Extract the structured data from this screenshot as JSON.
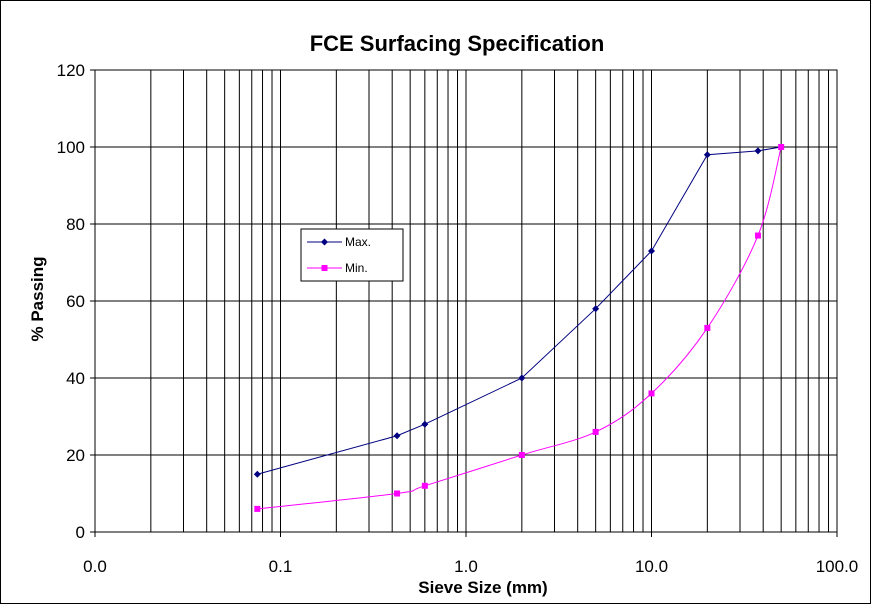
{
  "chart_data": {
    "type": "line",
    "title": "FCE Surfacing Specification",
    "xlabel": "Sieve Size (mm)",
    "ylabel": "% Passing",
    "x_scale": "log",
    "xlim": [
      0.01,
      100
    ],
    "ylim": [
      0,
      120
    ],
    "x_ticks": [
      "0.0",
      "0.1",
      "1.0",
      "10.0",
      "100.0"
    ],
    "y_ticks": [
      "0",
      "20",
      "40",
      "60",
      "80",
      "100",
      "120"
    ],
    "grid": true,
    "legend_position": "upper-left",
    "series": [
      {
        "name": "Max.",
        "color": "#000080",
        "marker": "diamond",
        "x": [
          0.075,
          0.425,
          0.6,
          2,
          5,
          10,
          20,
          37.5,
          50
        ],
        "y": [
          15,
          25,
          28,
          40,
          58,
          73,
          98,
          99,
          100
        ]
      },
      {
        "name": "Min.",
        "color": "#FF00FF",
        "marker": "square",
        "x": [
          0.075,
          0.425,
          0.6,
          2,
          5,
          10,
          20,
          37.5,
          50
        ],
        "y": [
          6,
          10,
          12,
          20,
          26,
          36,
          53,
          77,
          100
        ]
      }
    ]
  }
}
